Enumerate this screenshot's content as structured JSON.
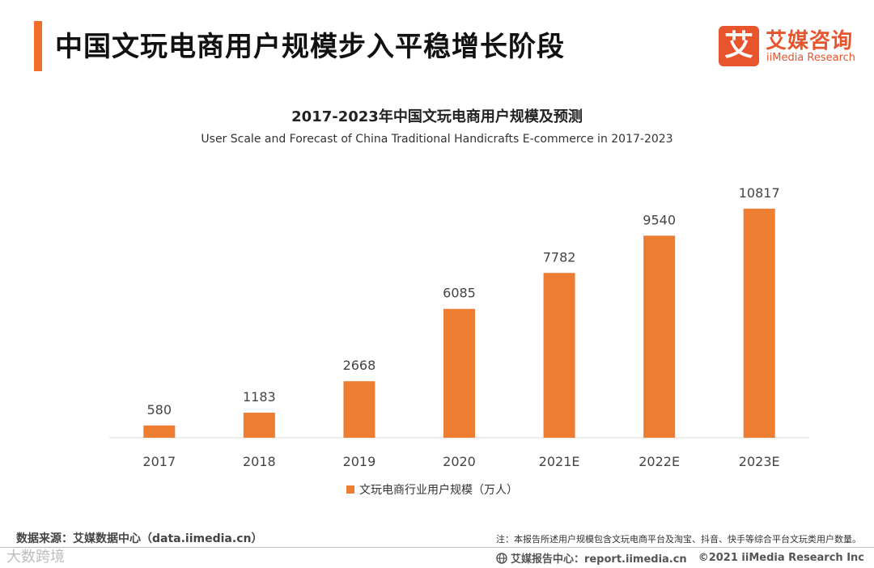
{
  "page": {
    "title": "中国文玩电商用户规模步入平稳增长阶段"
  },
  "logo": {
    "mark": "艾",
    "name_cn": "艾媒咨询",
    "name_en": "iiMedia Research"
  },
  "colors": {
    "accent": "#f06e2a",
    "bar": "#ed7d31",
    "brand": "#e8542c"
  },
  "chart_data": {
    "type": "bar",
    "title": "2017-2023年中国文玩电商用户规模及预测",
    "subtitle": "User Scale and Forecast of China Traditional Handicrafts E-commerce in 2017-2023",
    "categories": [
      "2017",
      "2018",
      "2019",
      "2020",
      "2021E",
      "2022E",
      "2023E"
    ],
    "series": [
      {
        "name": "文玩电商行业用户规模（万人）",
        "values": [
          580,
          1183,
          2668,
          6085,
          7782,
          9540,
          10817
        ]
      }
    ],
    "xlabel": "",
    "ylabel": "",
    "ylim": [
      0,
      11500
    ],
    "grid": false,
    "legend_position": "bottom"
  },
  "footer": {
    "source": "数据来源：艾媒数据中心（data.iimedia.cn）",
    "note": "注：本报告所述用户规模包含文玩电商平台及淘宝、抖音、快手等综合平台文玩类用户数量。",
    "watermark": "大数跨境",
    "report_center": "艾媒报告中心：report.iimedia.cn",
    "copyright": "©2021  iiMedia Research  Inc"
  }
}
